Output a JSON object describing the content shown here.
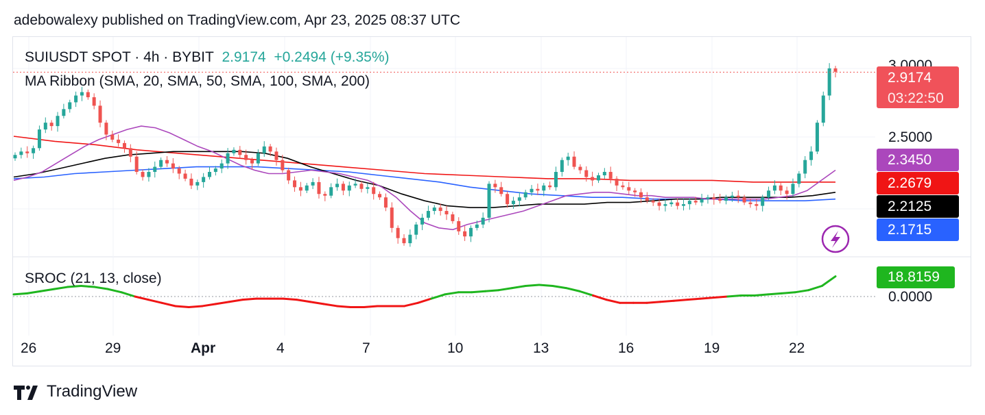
{
  "header": {
    "publisher": "adebowalexy published on TradingView.com, Apr 23, 2025 08:37 UTC"
  },
  "legend": {
    "symbol": "SUIUSDT SPOT · 4h · BYBIT",
    "last": "2.9174",
    "change": "+0.2494 (+9.35%)",
    "ma_ribbon": "MA Ribbon (SMA, 20, SMA, 50, SMA, 100, SMA, 200)",
    "sroc": "SROC (21, 13, close)"
  },
  "footer": {
    "brand": "TradingView"
  },
  "colors": {
    "up": "#26a69a",
    "down": "#ef5350",
    "sma20": "#ab47bc",
    "sma50": "#000000",
    "sma100": "#2962ff",
    "sma200": "#f01515",
    "sroc_pos": "#1fb61f",
    "sroc_neg": "#f01515"
  },
  "chart_data": {
    "type": "candlestick",
    "price_axis": {
      "ticks": [
        "3.0000",
        "2.5000"
      ],
      "ylim": [
        1.85,
        3.02
      ]
    },
    "x_ticks": [
      "26",
      "29",
      "Apr",
      "4",
      "7",
      "10",
      "13",
      "16",
      "19",
      "22"
    ],
    "price_tags": [
      {
        "label": "2.9174",
        "sublabel": "03:22:50",
        "color": "#f0525a"
      },
      {
        "label": "2.3450",
        "color": "#ab47bc"
      },
      {
        "label": "2.2679",
        "color": "#f01515"
      },
      {
        "label": "2.2125",
        "color": "#000000"
      },
      {
        "label": "2.1715",
        "color": "#2962ff"
      }
    ],
    "sroc_axis": {
      "ticks": [
        "0.0000"
      ]
    },
    "sroc_tag": {
      "label": "18.8159",
      "color": "#1fb61f"
    },
    "close_series": [
      2.43,
      2.45,
      2.44,
      2.47,
      2.58,
      2.62,
      2.6,
      2.66,
      2.7,
      2.74,
      2.78,
      2.8,
      2.77,
      2.72,
      2.62,
      2.55,
      2.52,
      2.5,
      2.47,
      2.42,
      2.33,
      2.3,
      2.33,
      2.36,
      2.4,
      2.38,
      2.35,
      2.32,
      2.29,
      2.25,
      2.27,
      2.3,
      2.33,
      2.35,
      2.38,
      2.44,
      2.46,
      2.43,
      2.4,
      2.38,
      2.44,
      2.48,
      2.45,
      2.4,
      2.34,
      2.28,
      2.24,
      2.22,
      2.25,
      2.27,
      2.2,
      2.19,
      2.24,
      2.26,
      2.22,
      2.25,
      2.26,
      2.23,
      2.24,
      2.2,
      2.18,
      2.12,
      2.0,
      1.94,
      1.91,
      1.96,
      2.02,
      2.06,
      2.1,
      2.12,
      2.1,
      2.08,
      2.04,
      1.98,
      1.95,
      2.0,
      2.02,
      2.06,
      2.26,
      2.24,
      2.2,
      2.14,
      2.16,
      2.18,
      2.21,
      2.23,
      2.22,
      2.25,
      2.24,
      2.33,
      2.4,
      2.42,
      2.36,
      2.34,
      2.3,
      2.28,
      2.31,
      2.33,
      2.29,
      2.25,
      2.24,
      2.22,
      2.21,
      2.18,
      2.16,
      2.15,
      2.13,
      2.14,
      2.15,
      2.13,
      2.14,
      2.16,
      2.15,
      2.17,
      2.18,
      2.17,
      2.16,
      2.18,
      2.19,
      2.18,
      2.15,
      2.14,
      2.13,
      2.18,
      2.22,
      2.25,
      2.22,
      2.2,
      2.26,
      2.32,
      2.4,
      2.45,
      2.62,
      2.78,
      2.94,
      2.92
    ],
    "sma20": [
      2.28,
      2.3,
      2.33,
      2.38,
      2.43,
      2.48,
      2.52,
      2.55,
      2.58,
      2.6,
      2.59,
      2.56,
      2.52,
      2.48,
      2.45,
      2.41,
      2.37,
      2.34,
      2.32,
      2.32,
      2.33,
      2.34,
      2.33,
      2.32,
      2.3,
      2.28,
      2.24,
      2.18,
      2.1,
      2.03,
      2.0,
      1.99,
      2.02,
      2.04,
      2.06,
      2.08,
      2.1,
      2.13,
      2.16,
      2.19,
      2.2,
      2.21,
      2.21,
      2.2,
      2.19,
      2.19,
      2.18,
      2.18,
      2.18,
      2.17,
      2.17,
      2.17,
      2.17,
      2.17,
      2.18,
      2.19,
      2.22,
      2.28,
      2.34
    ],
    "sma50": [
      2.3,
      2.32,
      2.35,
      2.38,
      2.41,
      2.43,
      2.44,
      2.45,
      2.45,
      2.45,
      2.45,
      2.44,
      2.41,
      2.36,
      2.32,
      2.28,
      2.25,
      2.2,
      2.16,
      2.13,
      2.12,
      2.12,
      2.13,
      2.14,
      2.14,
      2.14,
      2.15,
      2.15,
      2.16,
      2.17,
      2.17,
      2.18,
      2.18,
      2.18,
      2.18,
      2.19,
      2.21
    ],
    "sma100": [
      2.29,
      2.3,
      2.32,
      2.33,
      2.34,
      2.35,
      2.36,
      2.36,
      2.36,
      2.35,
      2.34,
      2.33,
      2.31,
      2.29,
      2.27,
      2.24,
      2.22,
      2.2,
      2.19,
      2.18,
      2.18,
      2.17,
      2.17,
      2.17,
      2.16,
      2.16,
      2.16,
      2.17
    ],
    "sma200": [
      2.54,
      2.51,
      2.49,
      2.46,
      2.44,
      2.42,
      2.4,
      2.38,
      2.36,
      2.34,
      2.32,
      2.31,
      2.3,
      2.29,
      2.29,
      2.28,
      2.28,
      2.28,
      2.27,
      2.27,
      2.27
    ],
    "sroc": [
      2,
      3,
      5,
      7,
      9,
      10,
      9,
      7,
      4,
      0,
      -3,
      -6,
      -9,
      -10,
      -9,
      -7,
      -5,
      -3,
      -2,
      -2,
      -2,
      -3,
      -5,
      -7,
      -9,
      -10,
      -10,
      -9,
      -9,
      -9,
      -6,
      -2,
      2,
      4,
      4,
      5,
      6,
      8,
      10,
      11,
      10,
      8,
      5,
      1,
      -3,
      -6,
      -6,
      -6,
      -5,
      -4,
      -3,
      -2,
      -1,
      0,
      1,
      1,
      2,
      3,
      4,
      6,
      10,
      19
    ]
  }
}
